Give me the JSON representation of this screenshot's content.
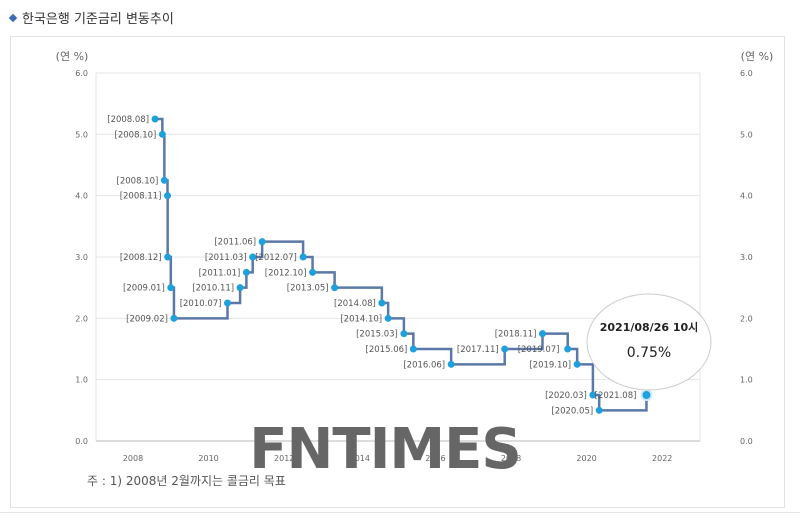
{
  "header": {
    "title": "한국은행 기준금리 변동추이"
  },
  "axis": {
    "left_unit": "(연 %)",
    "right_unit": "(연 %)"
  },
  "note": "주 : 1) 2008년 2월까지는 콜금리 목표",
  "watermark": "FNTIMES",
  "tooltip": {
    "datetime": "2021/08/26 10시",
    "value": "0.75%"
  },
  "colors": {
    "line": "#5a78a8",
    "point": "#1ea0dc",
    "grid": "#e4e4e4",
    "axis_text": "#666666"
  },
  "chart_data": {
    "type": "line",
    "step": true,
    "title": "한국은행 기준금리 변동추이",
    "xlabel": "",
    "ylabel": "연 %",
    "ylim": [
      0,
      6.0
    ],
    "yticks": [
      0.0,
      1.0,
      2.0,
      3.0,
      4.0,
      5.0,
      6.0
    ],
    "xticks": [
      "2008",
      "2010",
      "2012",
      "2014",
      "2016",
      "2018",
      "2020",
      "2022"
    ],
    "grid": true,
    "points": [
      {
        "label": "[2008.08]",
        "value": 5.25
      },
      {
        "label": "[2008.10]",
        "value": 5.0
      },
      {
        "label": "[2008.10]",
        "value": 4.25
      },
      {
        "label": "[2008.11]",
        "value": 4.0
      },
      {
        "label": "[2008.12]",
        "value": 3.0
      },
      {
        "label": "[2009.01]",
        "value": 2.5
      },
      {
        "label": "[2009.02]",
        "value": 2.0
      },
      {
        "label": "[2010.07]",
        "value": 2.25
      },
      {
        "label": "[2010.11]",
        "value": 2.5
      },
      {
        "label": "[2011.01]",
        "value": 2.75
      },
      {
        "label": "[2011.03]",
        "value": 3.0
      },
      {
        "label": "[2011.06]",
        "value": 3.25
      },
      {
        "label": "[2012.07]",
        "value": 3.0
      },
      {
        "label": "[2012.10]",
        "value": 2.75
      },
      {
        "label": "[2013.05]",
        "value": 2.5
      },
      {
        "label": "[2014.08]",
        "value": 2.25
      },
      {
        "label": "[2014.10]",
        "value": 2.0
      },
      {
        "label": "[2015.03]",
        "value": 1.75
      },
      {
        "label": "[2015.06]",
        "value": 1.5
      },
      {
        "label": "[2016.06]",
        "value": 1.25
      },
      {
        "label": "[2017.11]",
        "value": 1.5
      },
      {
        "label": "[2018.11]",
        "value": 1.75
      },
      {
        "label": "[2019.07]",
        "value": 1.5
      },
      {
        "label": "[2019.10]",
        "value": 1.25
      },
      {
        "label": "[2020.03]",
        "value": 0.75
      },
      {
        "label": "[2020.05]",
        "value": 0.5
      },
      {
        "label": "[2021.08]",
        "value": 0.75
      }
    ],
    "annotation": {
      "text": "2021/08/26 10시",
      "value": "0.75%"
    }
  }
}
